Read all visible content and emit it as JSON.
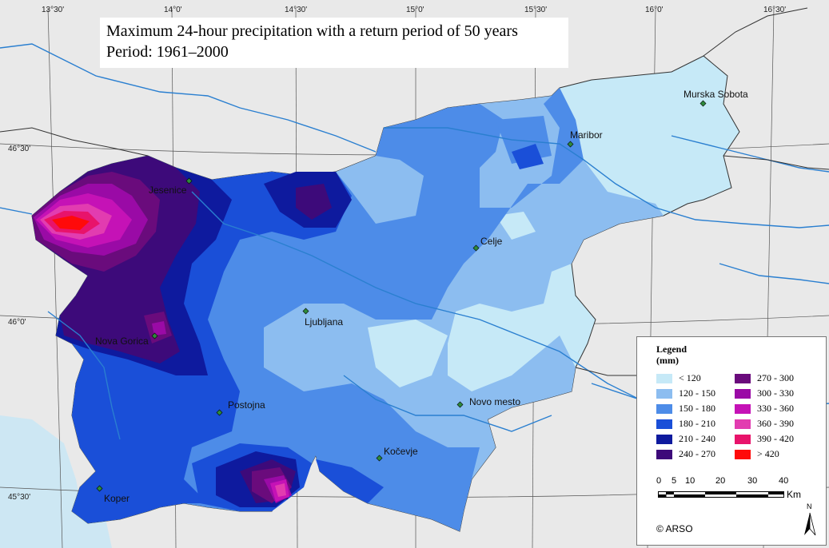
{
  "title": {
    "line1": "Maximum 24-hour precipitation with a return period of 50 years",
    "line2": "Period: 1961–2000"
  },
  "coordinates": {
    "top": [
      "13°30'",
      "14°0'",
      "14°30'",
      "15°0'",
      "15°30'",
      "16°0'",
      "16°30'"
    ],
    "left": [
      "46°30'",
      "46°0'",
      "45°30'"
    ]
  },
  "cities": [
    "Murska Sobota",
    "Maribor",
    "Jesenice",
    "Celje",
    "Ljubljana",
    "Nova Gorica",
    "Novo mesto",
    "Postojna",
    "Kočevje",
    "Koper"
  ],
  "legend": {
    "title": "Legend",
    "unit": "(mm)",
    "classes": [
      {
        "label": "< 120",
        "color": "#c6e9f7"
      },
      {
        "label": "120 - 150",
        "color": "#8cbdf0"
      },
      {
        "label": "150 - 180",
        "color": "#4d8ce8"
      },
      {
        "label": "180 - 210",
        "color": "#1a4fd8"
      },
      {
        "label": "210 - 240",
        "color": "#0e1a9e"
      },
      {
        "label": "240 - 270",
        "color": "#3d0a7a"
      },
      {
        "label": "270 - 300",
        "color": "#6a0b7c"
      },
      {
        "label": "300 - 330",
        "color": "#9a0aa6"
      },
      {
        "label": "330 - 360",
        "color": "#c512b6"
      },
      {
        "label": "360 - 390",
        "color": "#e23cb0"
      },
      {
        "label": "390 - 420",
        "color": "#e8136b"
      },
      {
        "label": "> 420",
        "color": "#ff0a0a"
      }
    ]
  },
  "scale_bar": {
    "ticks": [
      "0",
      "5",
      "10",
      "20",
      "30",
      "40"
    ],
    "unit": "Km"
  },
  "north_label": "N",
  "copyright": "© ARSO"
}
